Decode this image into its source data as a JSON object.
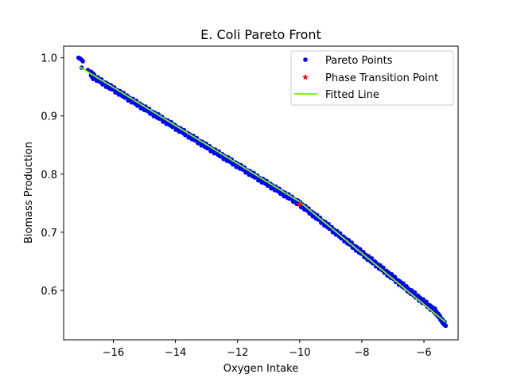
{
  "chart_data": {
    "type": "scatter",
    "title": "E. Coli Pareto Front",
    "xlabel": "Oxygen Intake",
    "ylabel": "Biomass Production",
    "xlim": [
      -17.6,
      -4.9
    ],
    "ylim": [
      0.515,
      1.02
    ],
    "x_ticks": [
      -16,
      -14,
      -12,
      -10,
      -8,
      -6
    ],
    "x_tick_labels": [
      "−16",
      "−14",
      "−12",
      "−10",
      "−8",
      "−6"
    ],
    "y_ticks": [
      0.6,
      0.7,
      0.8,
      0.9,
      1.0
    ],
    "y_tick_labels": [
      "0.6",
      "0.7",
      "0.8",
      "0.9",
      "1.0"
    ],
    "grid": false,
    "legend_position": "top-right",
    "colors": {
      "pareto": "#0000ff",
      "transition": "#ff0000",
      "fitted": "#7cfc00"
    },
    "series": [
      {
        "name": "Pareto Points",
        "kind": "markers",
        "segments": [
          {
            "x_start": -16.72,
            "y_start": 0.97,
            "x_end": -10.02,
            "y_end": 0.75,
            "count": 180,
            "spread": 0.004
          },
          {
            "x_start": -10.02,
            "y_start": 0.75,
            "x_end": -5.65,
            "y_end": 0.565,
            "count": 130,
            "spread": 0.004
          },
          {
            "x_start": -5.65,
            "y_start": 0.565,
            "x_end": -5.3,
            "y_end": 0.54,
            "count": 20,
            "spread": 0.003
          }
        ],
        "points": [
          [
            -17.12,
            1.0
          ],
          [
            -17.08,
            0.999
          ],
          [
            -17.03,
            0.997
          ],
          [
            -16.98,
            0.994
          ],
          [
            -17.02,
            0.983
          ],
          [
            -16.82,
            0.979
          ],
          [
            -16.72,
            0.976
          ],
          [
            -16.65,
            0.973
          ],
          [
            -16.62,
            0.971
          ],
          [
            -16.7,
            0.968
          ],
          [
            -16.67,
            0.966
          ]
        ]
      },
      {
        "name": "Phase Transition Point",
        "kind": "star",
        "points": [
          [
            -10.0,
            0.748
          ]
        ]
      },
      {
        "name": "Fitted Line",
        "kind": "line",
        "points": [
          [
            -17.1,
            0.985
          ],
          [
            -10.02,
            0.753
          ],
          [
            -5.3,
            0.545
          ]
        ]
      }
    ]
  }
}
